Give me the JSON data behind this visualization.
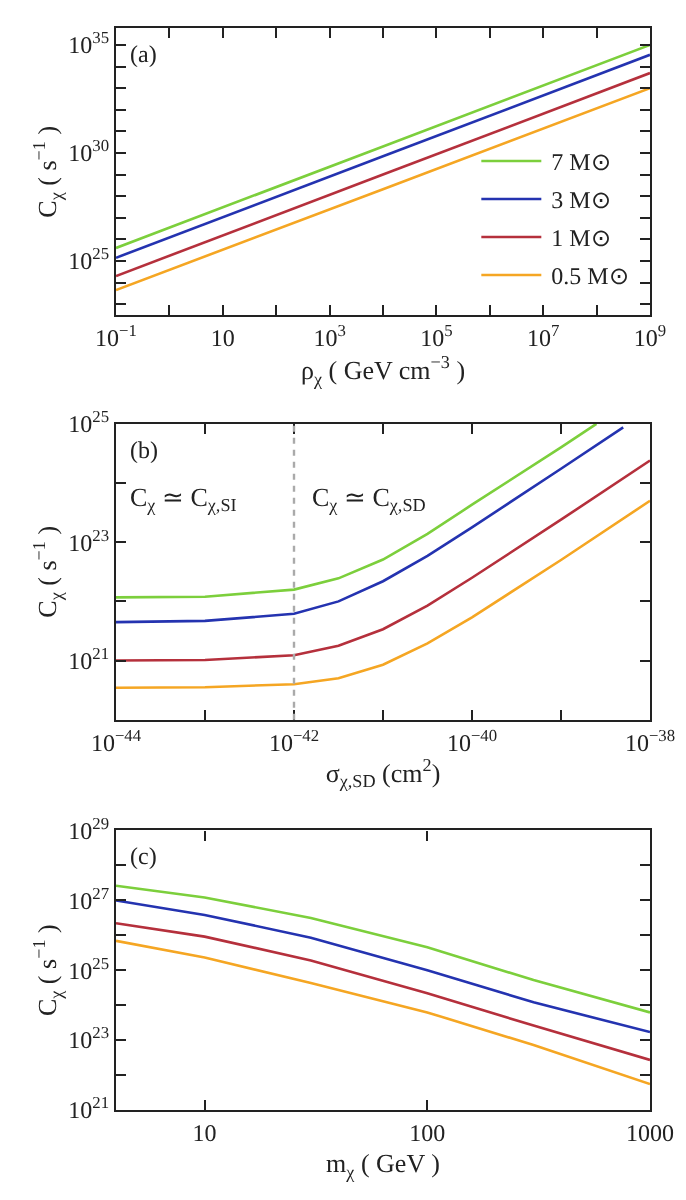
{
  "chart_data": [
    {
      "type": "line",
      "log": "xy",
      "legend": "bottom right",
      "annotations": [
        "(a)"
      ],
      "xlabel": "ρ$_{χ}$ ( GeV cm$^{−3}$ )",
      "ylabel": "C$_{χ}$ ( s$^{−1}$ )",
      "xlim": [
        0.1,
        1000000000.0
      ],
      "ylim": [
        3e+22,
        6e+35
      ],
      "xticks": [
        {
          "value": 0.1,
          "label": "10$^{−1}$"
        },
        {
          "value": 1,
          "label": null
        },
        10,
        {
          "value": 100,
          "label": null
        },
        {
          "value": 1000,
          "label": "10$^{3}$"
        },
        {
          "value": 10000.0,
          "label": null
        },
        {
          "value": 100000.0,
          "label": "10$^{5}$"
        },
        {
          "value": 1000000.0,
          "label": null
        },
        {
          "value": 10000000.0,
          "label": "10$^{7}$"
        },
        {
          "value": 100000000.0,
          "label": null
        },
        {
          "value": 1000000000.0,
          "label": "10$^{9}$"
        }
      ],
      "yticks": [
        {
          "value": 1e+23,
          "label": null
        },
        {
          "value": 1e+24,
          "label": null
        },
        {
          "value": 1e+25,
          "label": "10$^{25}$"
        },
        {
          "value": 1e+26,
          "label": null
        },
        {
          "value": 1e+27,
          "label": null
        },
        {
          "value": 1e+28,
          "label": null
        },
        {
          "value": 1e+29,
          "label": null
        },
        {
          "value": 1e+30,
          "label": "10$^{30}$"
        },
        {
          "value": 1e+31,
          "label": null
        },
        {
          "value": 1e+32,
          "label": null
        },
        {
          "value": 1e+33,
          "label": null
        },
        {
          "value": 1e+34,
          "label": null
        },
        {
          "value": 1e+35,
          "label": "10$^{35}$"
        }
      ],
      "x": [
        0.1,
        10000.0,
        1000000000.0
      ],
      "series": [
        {
          "name": "7 M⊙",
          "color": "#7ccf3c",
          "values": [
            4e+25,
            2e+30,
            1e+35
          ]
        },
        {
          "name": "3 M⊙",
          "color": "#2433b0",
          "values": [
            1.4e+25,
            7e+29,
            3.5e+34
          ]
        },
        {
          "name": "1 M⊙",
          "color": "#b5303c",
          "values": [
            2e+24,
            1e+29,
            5e+33
          ]
        },
        {
          "name": "0.5 M⊙",
          "color": "#f5a623",
          "values": [
            4.5e+23,
            2.1e+28,
            1e+33
          ]
        }
      ]
    },
    {
      "type": "line",
      "log": "xy",
      "annotations": [
        "(b)",
        "C$_{χ}$ ≃ C$_{χ,SI}$",
        "C$_{χ}$ ≃ C$_{χ,SD}$"
      ],
      "xlabel": "σ$_{χ,SD}$ (cm$^{2}$)",
      "ylabel": "C$_{χ}$ ( s$^{−1}$ )",
      "xlim": [
        1e-44,
        1e-38
      ],
      "ylim": [
        1e+20,
        1e+25
      ],
      "xticks": [
        {
          "value": 1e-44,
          "label": "10$^{−44}$"
        },
        {
          "value": 1e-43,
          "label": null
        },
        {
          "value": 1e-42,
          "label": "10$^{−42}$"
        },
        {
          "value": 1e-41,
          "label": null
        },
        {
          "value": 1e-40,
          "label": "10$^{−40}$"
        },
        {
          "value": 1e-39,
          "label": null
        },
        {
          "value": 1e-38,
          "label": "10$^{−38}$"
        }
      ],
      "yticks": [
        {
          "value": 1e+21,
          "label": "10$^{21}$"
        },
        {
          "value": 1e+22,
          "label": null
        },
        {
          "value": 1e+23,
          "label": "10$^{23}$"
        },
        {
          "value": 1e+24,
          "label": null
        },
        {
          "value": 1e+25,
          "label": "10$^{25}$"
        }
      ],
      "ref_lines": [
        {
          "axis": "x",
          "value": 1e-42,
          "color": "#aaaaaa",
          "line_style": "dotted"
        }
      ],
      "series": [
        {
          "color": "#7ccf3c",
          "x": [
            1e-44,
            1e-43,
            1e-42,
            3.16e-42,
            1e-41,
            3.16e-41,
            1e-40,
            1e-39,
            2.5e-39
          ],
          "values": [
            1.17e+22,
            1.2e+22,
            1.58e+22,
            2.45e+22,
            5.1e+22,
            1.38e+23,
            4.3e+23,
            4e+24,
            1e+25
          ]
        },
        {
          "color": "#2433b0",
          "x": [
            1e-44,
            1e-43,
            1e-42,
            3.16e-42,
            1e-41,
            3.16e-41,
            1e-40,
            1e-39,
            5e-39
          ],
          "values": [
            4.47e+21,
            4.68e+21,
            6.17e+21,
            1e+22,
            2.19e+22,
            5.89e+22,
            1.78e+23,
            1.74e+24,
            8.7e+24
          ]
        },
        {
          "color": "#b5303c",
          "x": [
            1e-44,
            1e-43,
            1e-42,
            3.16e-42,
            1e-41,
            3.16e-41,
            1e-40,
            1e-39,
            1e-38
          ],
          "values": [
            1e+21,
            1.02e+21,
            1.23e+21,
            1.78e+21,
            3.39e+21,
            8.5e+21,
            2.51e+22,
            2.4e+23,
            2.4e+24
          ]
        },
        {
          "color": "#f5a623",
          "x": [
            1e-44,
            1e-43,
            1e-42,
            3.16e-42,
            1e-41,
            3.16e-41,
            1e-40,
            1e-39,
            1e-38
          ],
          "values": [
            3.47e+20,
            3.55e+20,
            3.98e+20,
            5.01e+20,
            8.5e+20,
            1.95e+21,
            5.37e+21,
            5.01e+22,
            5.01e+23
          ]
        }
      ]
    },
    {
      "type": "line",
      "log": "xy",
      "annotations": [
        "(c)"
      ],
      "xlabel": "m$_{χ}$ ( GeV )",
      "ylabel": "C$_{χ}$ ( s$^{−1}$ )",
      "xlim": [
        4,
        1000
      ],
      "ylim": [
        1e+21,
        1e+29
      ],
      "xticks": [
        10,
        100,
        1000
      ],
      "yticks": [
        {
          "value": 1e+21,
          "label": "10$^{21}$"
        },
        {
          "value": 1e+22,
          "label": null
        },
        {
          "value": 1e+23,
          "label": "10$^{23}$"
        },
        {
          "value": 1e+24,
          "label": null
        },
        {
          "value": 1e+25,
          "label": "10$^{25}$"
        },
        {
          "value": 1e+26,
          "label": null
        },
        {
          "value": 1e+27,
          "label": "10$^{27}$"
        },
        {
          "value": 1e+28,
          "label": null
        },
        {
          "value": 1e+29,
          "label": "10$^{29}$"
        }
      ],
      "x": [
        4,
        10,
        30,
        100,
        300,
        1000
      ],
      "series": [
        {
          "color": "#7ccf3c",
          "values": [
            2.6e+27,
            1.2e+27,
            3.1e+26,
            4.5e+25,
            5.2e+24,
            6.2e+23
          ]
        },
        {
          "color": "#2433b0",
          "values": [
            9.8e+26,
            3.8e+26,
            8.5e+25,
            1e+25,
            1.2e+24,
            1.7e+23
          ]
        },
        {
          "color": "#b5303c",
          "values": [
            2.2e+26,
            9.1e+25,
            1.9e+25,
            2.2e+24,
            2.6e+23,
            2.7e+22
          ]
        },
        {
          "color": "#f5a623",
          "values": [
            6.9e+25,
            2.3e+25,
            4.3e+24,
            6.2e+23,
            7.2e+22,
            5.5e+21
          ]
        }
      ]
    }
  ]
}
